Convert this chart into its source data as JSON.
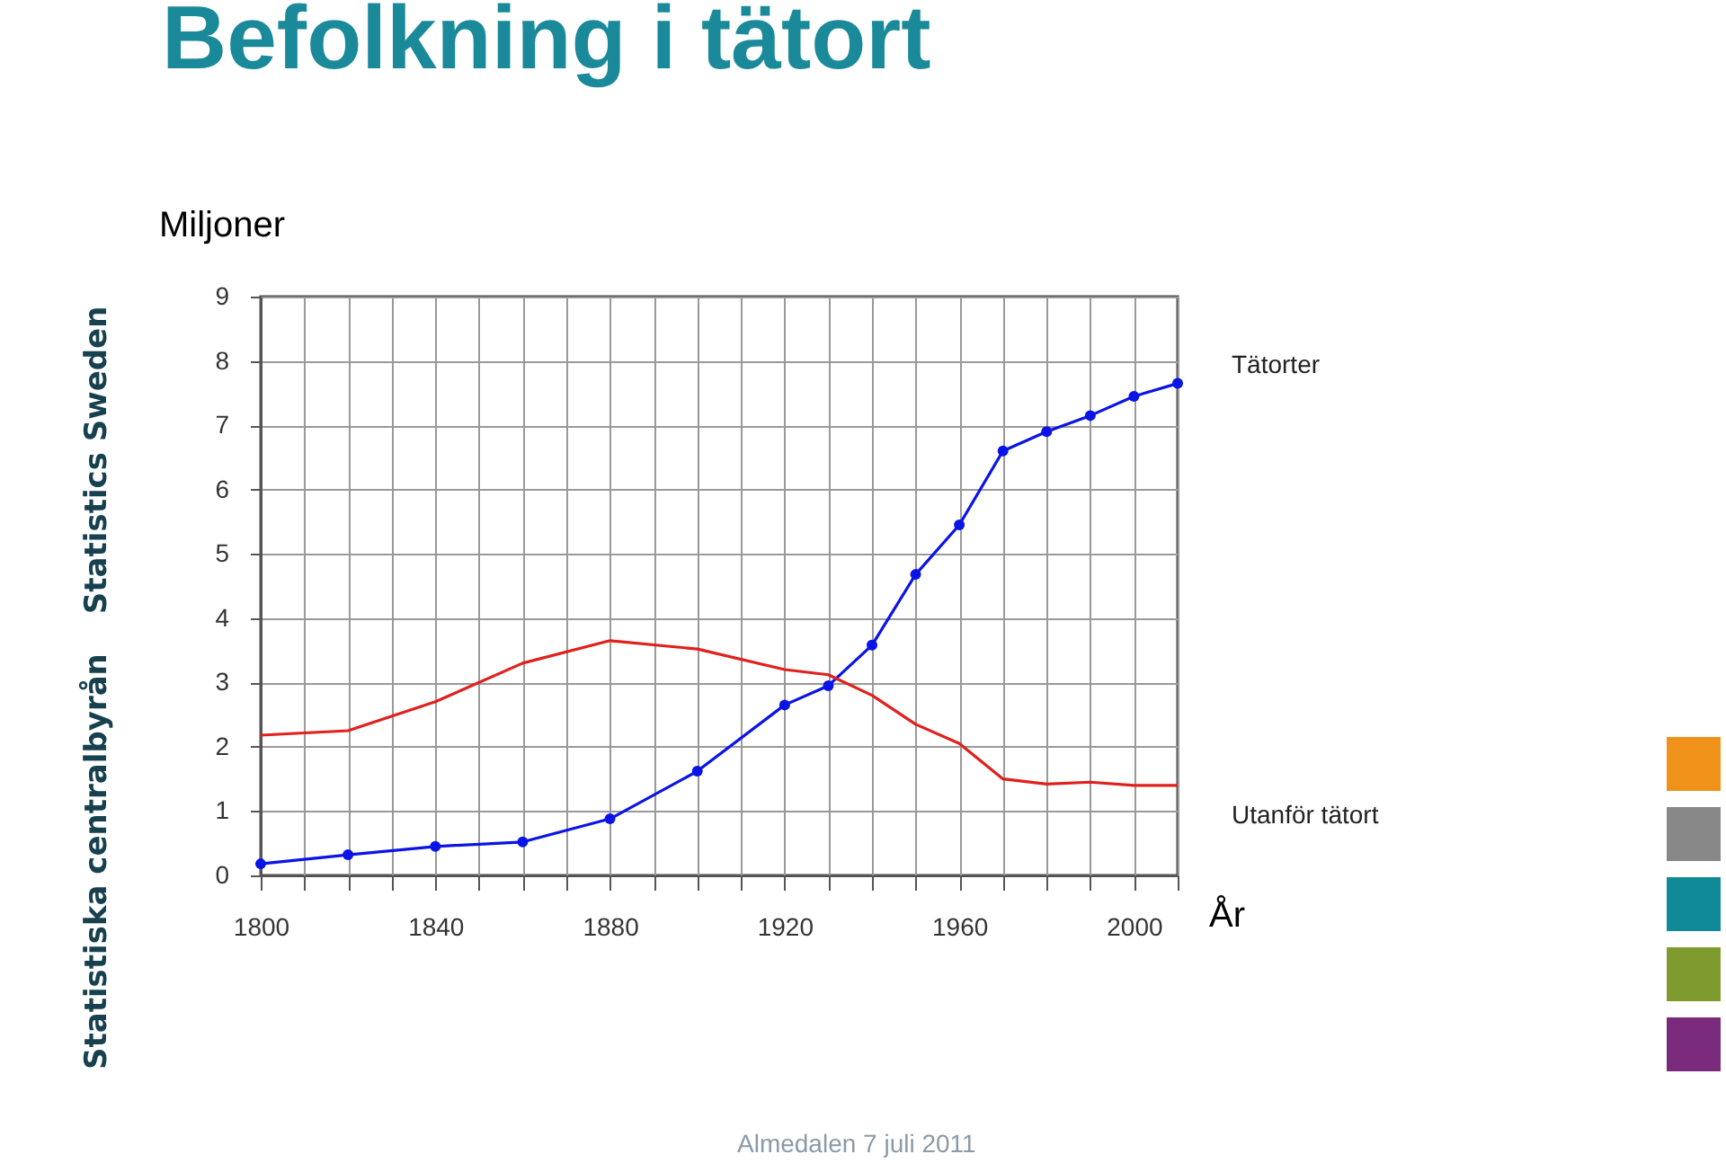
{
  "chart_data": {
    "type": "line",
    "title": "Befolkning i tätort",
    "ylabel": "Miljoner",
    "xlabel": "År",
    "annotations": [
      "Statistiska centralbyrån",
      "Statistics Sweden",
      "Almedalen 7 juli 2011"
    ],
    "x": [
      1800,
      1820,
      1840,
      1860,
      1880,
      1900,
      1920,
      1930,
      1940,
      1950,
      1960,
      1970,
      1980,
      1990,
      2000,
      2010
    ],
    "series": [
      {
        "name": "Tätorter",
        "color": "#0a14e6",
        "marker": "circle",
        "values": [
          0.18,
          0.32,
          0.45,
          0.52,
          0.88,
          1.62,
          2.65,
          2.95,
          3.58,
          4.68,
          5.45,
          6.6,
          6.9,
          7.15,
          7.45,
          7.65
        ]
      },
      {
        "name": "Utanför tätort",
        "color": "#e0201c",
        "marker": "none",
        "values": [
          2.18,
          2.25,
          2.7,
          3.3,
          3.65,
          3.52,
          3.2,
          3.12,
          2.8,
          2.35,
          2.05,
          1.5,
          1.42,
          1.45,
          1.4,
          1.4
        ]
      }
    ],
    "xlim": [
      1800,
      2010
    ],
    "xticks": [
      1800,
      {
        "value": 1810,
        "label": null
      },
      {
        "value": 1820,
        "label": null
      },
      {
        "value": 1830,
        "label": null
      },
      1840,
      {
        "value": 1850,
        "label": null
      },
      {
        "value": 1860,
        "label": null
      },
      {
        "value": 1870,
        "label": null
      },
      1880,
      {
        "value": 1890,
        "label": null
      },
      {
        "value": 1900,
        "label": null
      },
      {
        "value": 1910,
        "label": null
      },
      1920,
      {
        "value": 1930,
        "label": null
      },
      {
        "value": 1940,
        "label": null
      },
      {
        "value": 1950,
        "label": null
      },
      1960,
      {
        "value": 1970,
        "label": null
      },
      {
        "value": 1980,
        "label": null
      },
      {
        "value": 1990,
        "label": null
      },
      2000,
      {
        "value": 2010,
        "label": null
      }
    ],
    "ylim": [
      0,
      9
    ],
    "yticks": [
      0,
      1,
      2,
      3,
      4,
      5,
      6,
      7,
      8,
      9
    ],
    "grid": true,
    "line_style": "solid"
  }
}
